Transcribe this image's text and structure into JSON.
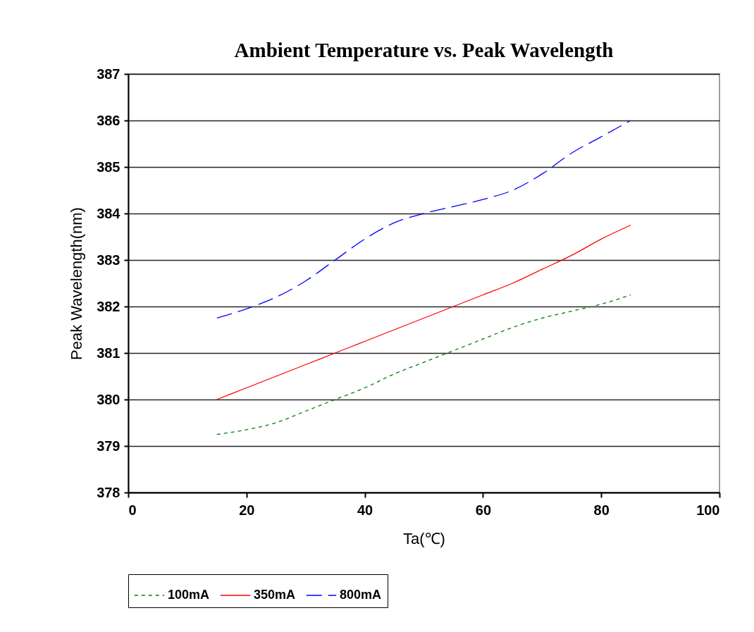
{
  "chart_data": {
    "type": "line",
    "title": "Ambient Temperature vs. Peak Wavelength",
    "xlabel": "Ta(℃)",
    "ylabel": "Peak Wavelength(nm)",
    "x": [
      15,
      20,
      25,
      30,
      35,
      40,
      45,
      50,
      55,
      60,
      65,
      70,
      75,
      80,
      85
    ],
    "series": [
      {
        "name": "100mA",
        "color": "#008000",
        "line_style": "dotted",
        "values": [
          379.25,
          379.35,
          379.5,
          379.75,
          380.0,
          380.25,
          380.55,
          380.8,
          381.05,
          381.3,
          381.55,
          381.75,
          381.9,
          382.05,
          382.25
        ]
      },
      {
        "name": "350mA",
        "color": "#ff0000",
        "line_style": "solid",
        "values": [
          380.0,
          380.25,
          380.5,
          380.75,
          381.0,
          381.25,
          381.5,
          381.75,
          382.0,
          382.25,
          382.5,
          382.8,
          383.1,
          383.45,
          383.75
        ]
      },
      {
        "name": "800mA",
        "color": "#0000ff",
        "line_style": "dashed",
        "values": [
          381.75,
          381.95,
          382.2,
          382.55,
          383.0,
          383.45,
          383.8,
          384.0,
          384.15,
          384.3,
          384.5,
          384.85,
          385.3,
          385.65,
          386.0
        ]
      }
    ],
    "xlim": [
      0,
      100
    ],
    "xticks": [
      0,
      20,
      40,
      60,
      80,
      100
    ],
    "ylim": [
      378,
      387
    ],
    "yticks": [
      378,
      379,
      380,
      381,
      382,
      383,
      384,
      385,
      386,
      387
    ],
    "grid": "y",
    "legend": "bottom",
    "marker": "none"
  }
}
